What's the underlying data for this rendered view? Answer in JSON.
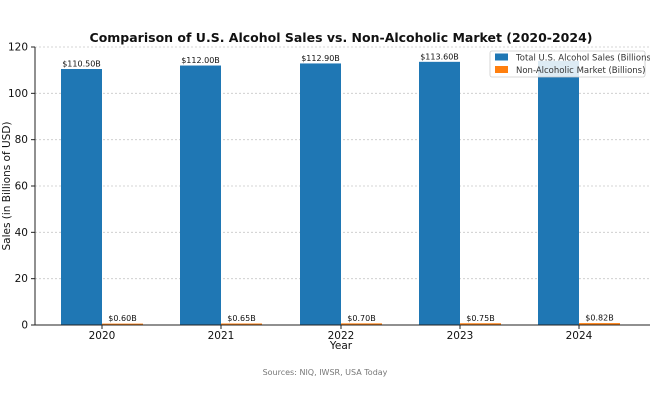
{
  "chart_data": {
    "type": "bar",
    "title": "Comparison of U.S. Alcohol Sales vs. Non-Alcoholic Market (2020-2024)",
    "xlabel": "Year",
    "ylabel": "Sales (in Billions of USD)",
    "categories": [
      "2020",
      "2021",
      "2022",
      "2023",
      "2024"
    ],
    "series": [
      {
        "name": "Total U.S. Alcohol Sales (Billions)",
        "color": "#1f77b4",
        "values": [
          110.5,
          112.0,
          112.9,
          113.6,
          114.0
        ],
        "labels": [
          "$110.50B",
          "$112.00B",
          "$112.90B",
          "$113.60B",
          ""
        ]
      },
      {
        "name": "Non-Alcoholic Market (Billions)",
        "color": "#ff7f0e",
        "values": [
          0.6,
          0.65,
          0.7,
          0.75,
          0.82
        ],
        "labels": [
          "$0.60B",
          "$0.65B",
          "$0.70B",
          "$0.75B",
          "$0.82B"
        ]
      }
    ],
    "ylim": [
      0,
      120
    ],
    "yticks": [
      "0",
      "20",
      "40",
      "60",
      "80",
      "100",
      "120"
    ],
    "grid": "y-dotted",
    "legend_position": "top-right"
  },
  "footer": {
    "source": "Sources: NIQ, IWSR, USA Today"
  }
}
